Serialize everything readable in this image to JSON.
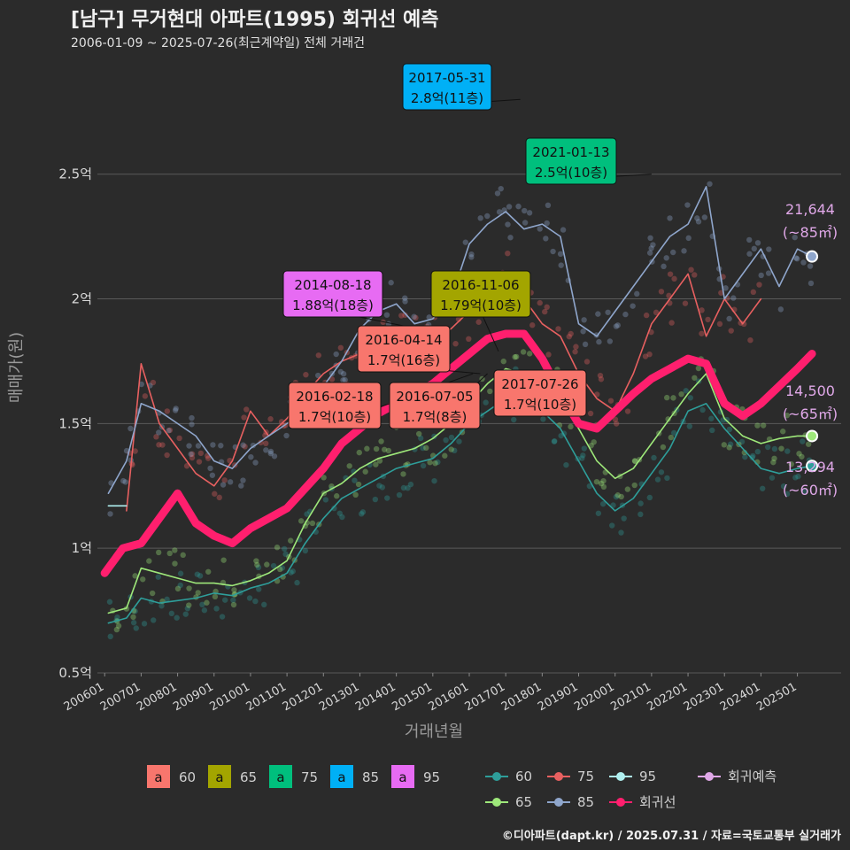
{
  "title": "[남구] 무거현대 아파트(1995) 회귀선 예측",
  "subtitle": "2006-01-09 ~ 2025-07-26(최근계약일) 전체 거래건",
  "caption": "©디아파트(dapt.kr) / 2025.07.31 / 자료=국토교통부 실거래가",
  "colors": {
    "background": "#2b2b2b",
    "grid": "#5a5a5a",
    "s60": "#F8766D",
    "s65": "#A3A500",
    "s75": "#00BF7D",
    "s85": "#00B0F6",
    "s95": "#E76BF3",
    "line60": "#2E9E9A",
    "line65": "#9EE87A",
    "line75": "#E86060",
    "line85": "#8FA6CC",
    "line95": "#AFF0F0",
    "regression": "#FF1F6E",
    "predict": "#E0A8E8"
  },
  "chart_data": {
    "type": "line",
    "xlabel": "거래년월",
    "ylabel": "매매가(원)",
    "ylim": [
      0.5,
      2.95
    ],
    "x_ticks": [
      "200601",
      "200701",
      "200801",
      "200901",
      "201001",
      "201101",
      "201201",
      "201301",
      "201401",
      "201501",
      "201601",
      "201701",
      "201801",
      "201901",
      "202001",
      "202101",
      "202201",
      "202301",
      "202401",
      "202501"
    ],
    "y_ticks": [
      {
        "value": 0.5,
        "label": "0.5억"
      },
      {
        "value": 1.0,
        "label": "1억"
      },
      {
        "value": 1.5,
        "label": "1.5억"
      },
      {
        "value": 2.0,
        "label": "2억"
      },
      {
        "value": 2.5,
        "label": "2.5억"
      }
    ],
    "series": [
      {
        "name": "60",
        "key": "line60",
        "points": [
          [
            2006.1,
            0.7
          ],
          [
            2006.6,
            0.72
          ],
          [
            2007.0,
            0.8
          ],
          [
            2007.5,
            0.78
          ],
          [
            2008.0,
            0.79
          ],
          [
            2008.5,
            0.8
          ],
          [
            2009.0,
            0.82
          ],
          [
            2009.5,
            0.81
          ],
          [
            2010.0,
            0.84
          ],
          [
            2010.5,
            0.86
          ],
          [
            2011.0,
            0.9
          ],
          [
            2011.5,
            1.02
          ],
          [
            2012.0,
            1.12
          ],
          [
            2012.5,
            1.2
          ],
          [
            2013.0,
            1.24
          ],
          [
            2013.5,
            1.28
          ],
          [
            2014.0,
            1.32
          ],
          [
            2014.5,
            1.34
          ],
          [
            2015.0,
            1.36
          ],
          [
            2015.5,
            1.42
          ],
          [
            2016.0,
            1.5
          ],
          [
            2016.5,
            1.55
          ],
          [
            2017.0,
            1.6
          ],
          [
            2017.5,
            1.62
          ],
          [
            2018.0,
            1.55
          ],
          [
            2018.5,
            1.48
          ],
          [
            2019.0,
            1.35
          ],
          [
            2019.5,
            1.22
          ],
          [
            2020.0,
            1.15
          ],
          [
            2020.5,
            1.2
          ],
          [
            2021.0,
            1.3
          ],
          [
            2021.5,
            1.4
          ],
          [
            2022.0,
            1.55
          ],
          [
            2022.5,
            1.58
          ],
          [
            2023.0,
            1.48
          ],
          [
            2023.5,
            1.4
          ],
          [
            2024.0,
            1.32
          ],
          [
            2024.5,
            1.3
          ],
          [
            2025.0,
            1.32
          ],
          [
            2025.4,
            1.33
          ]
        ]
      },
      {
        "name": "65",
        "key": "line65",
        "points": [
          [
            2006.1,
            0.74
          ],
          [
            2006.6,
            0.76
          ],
          [
            2007.0,
            0.92
          ],
          [
            2007.5,
            0.9
          ],
          [
            2008.0,
            0.88
          ],
          [
            2008.5,
            0.86
          ],
          [
            2009.0,
            0.86
          ],
          [
            2009.5,
            0.85
          ],
          [
            2010.0,
            0.87
          ],
          [
            2010.5,
            0.9
          ],
          [
            2011.0,
            0.95
          ],
          [
            2011.5,
            1.1
          ],
          [
            2012.0,
            1.22
          ],
          [
            2012.5,
            1.26
          ],
          [
            2013.0,
            1.32
          ],
          [
            2013.5,
            1.36
          ],
          [
            2014.0,
            1.38
          ],
          [
            2014.5,
            1.4
          ],
          [
            2015.0,
            1.44
          ],
          [
            2015.5,
            1.5
          ],
          [
            2016.0,
            1.58
          ],
          [
            2016.5,
            1.66
          ],
          [
            2017.0,
            1.72
          ],
          [
            2017.5,
            1.7
          ],
          [
            2018.0,
            1.66
          ],
          [
            2018.5,
            1.6
          ],
          [
            2019.0,
            1.48
          ],
          [
            2019.5,
            1.35
          ],
          [
            2020.0,
            1.28
          ],
          [
            2020.5,
            1.32
          ],
          [
            2021.0,
            1.42
          ],
          [
            2021.5,
            1.52
          ],
          [
            2022.0,
            1.62
          ],
          [
            2022.5,
            1.7
          ],
          [
            2023.0,
            1.52
          ],
          [
            2023.5,
            1.45
          ],
          [
            2024.0,
            1.42
          ],
          [
            2024.5,
            1.44
          ],
          [
            2025.0,
            1.45
          ],
          [
            2025.4,
            1.45
          ]
        ]
      },
      {
        "name": "75",
        "key": "line75",
        "points": [
          [
            2006.6,
            1.15
          ],
          [
            2007.0,
            1.74
          ],
          [
            2007.5,
            1.5
          ],
          [
            2008.0,
            1.4
          ],
          [
            2008.5,
            1.3
          ],
          [
            2009.0,
            1.25
          ],
          [
            2009.5,
            1.35
          ],
          [
            2010.0,
            1.55
          ],
          [
            2010.5,
            1.45
          ],
          [
            2011.0,
            1.52
          ],
          [
            2011.5,
            1.62
          ],
          [
            2012.0,
            1.7
          ],
          [
            2012.5,
            1.75
          ],
          [
            2013.0,
            1.78
          ],
          [
            2013.5,
            1.8
          ],
          [
            2014.0,
            1.82
          ],
          [
            2014.5,
            1.84
          ],
          [
            2015.0,
            1.84
          ],
          [
            2015.5,
            1.88
          ],
          [
            2016.0,
            1.95
          ],
          [
            2016.5,
            2.0
          ],
          [
            2017.0,
            2.1
          ],
          [
            2017.5,
            2.0
          ],
          [
            2018.0,
            1.9
          ],
          [
            2018.5,
            1.85
          ],
          [
            2019.0,
            1.7
          ],
          [
            2019.5,
            1.6
          ],
          [
            2020.0,
            1.55
          ],
          [
            2020.5,
            1.7
          ],
          [
            2021.0,
            1.9
          ],
          [
            2021.5,
            2.0
          ],
          [
            2022.0,
            2.1
          ],
          [
            2022.5,
            1.85
          ],
          [
            2023.0,
            2.0
          ],
          [
            2023.5,
            1.9
          ],
          [
            2024.0,
            2.0
          ]
        ]
      },
      {
        "name": "85",
        "key": "line85",
        "points": [
          [
            2006.1,
            1.22
          ],
          [
            2006.6,
            1.35
          ],
          [
            2007.0,
            1.58
          ],
          [
            2007.5,
            1.55
          ],
          [
            2008.0,
            1.5
          ],
          [
            2008.5,
            1.45
          ],
          [
            2009.0,
            1.35
          ],
          [
            2009.5,
            1.32
          ],
          [
            2010.0,
            1.4
          ],
          [
            2010.5,
            1.45
          ],
          [
            2011.0,
            1.5
          ],
          [
            2011.5,
            1.55
          ],
          [
            2012.0,
            1.65
          ],
          [
            2012.5,
            1.75
          ],
          [
            2013.0,
            1.88
          ],
          [
            2013.5,
            1.95
          ],
          [
            2014.0,
            1.98
          ],
          [
            2014.5,
            1.9
          ],
          [
            2015.0,
            1.92
          ],
          [
            2015.5,
            2.0
          ],
          [
            2016.0,
            2.22
          ],
          [
            2016.5,
            2.3
          ],
          [
            2017.0,
            2.35
          ],
          [
            2017.5,
            2.28
          ],
          [
            2018.0,
            2.3
          ],
          [
            2018.5,
            2.25
          ],
          [
            2019.0,
            1.9
          ],
          [
            2019.5,
            1.85
          ],
          [
            2020.0,
            1.95
          ],
          [
            2020.5,
            2.05
          ],
          [
            2021.0,
            2.15
          ],
          [
            2021.5,
            2.25
          ],
          [
            2022.0,
            2.3
          ],
          [
            2022.5,
            2.45
          ],
          [
            2023.0,
            2.0
          ],
          [
            2023.5,
            2.1
          ],
          [
            2024.0,
            2.2
          ],
          [
            2024.5,
            2.05
          ],
          [
            2025.0,
            2.2
          ],
          [
            2025.4,
            2.17
          ]
        ]
      },
      {
        "name": "95",
        "key": "line95",
        "points": [
          [
            2006.1,
            1.17
          ],
          [
            2006.6,
            1.17
          ]
        ]
      },
      {
        "name": "회귀선",
        "key": "regression",
        "points": [
          [
            2006.0,
            0.9
          ],
          [
            2006.5,
            1.0
          ],
          [
            2007.0,
            1.02
          ],
          [
            2007.5,
            1.12
          ],
          [
            2008.0,
            1.22
          ],
          [
            2008.5,
            1.1
          ],
          [
            2009.0,
            1.05
          ],
          [
            2009.5,
            1.02
          ],
          [
            2010.0,
            1.08
          ],
          [
            2010.5,
            1.12
          ],
          [
            2011.0,
            1.16
          ],
          [
            2011.5,
            1.24
          ],
          [
            2012.0,
            1.32
          ],
          [
            2012.5,
            1.42
          ],
          [
            2013.0,
            1.48
          ],
          [
            2013.5,
            1.54
          ],
          [
            2014.0,
            1.58
          ],
          [
            2014.5,
            1.62
          ],
          [
            2015.0,
            1.66
          ],
          [
            2015.5,
            1.72
          ],
          [
            2016.0,
            1.78
          ],
          [
            2016.5,
            1.84
          ],
          [
            2017.0,
            1.86
          ],
          [
            2017.5,
            1.86
          ],
          [
            2018.0,
            1.76
          ],
          [
            2018.5,
            1.62
          ],
          [
            2019.0,
            1.5
          ],
          [
            2019.5,
            1.48
          ],
          [
            2020.0,
            1.55
          ],
          [
            2020.5,
            1.62
          ],
          [
            2021.0,
            1.68
          ],
          [
            2021.5,
            1.72
          ],
          [
            2022.0,
            1.76
          ],
          [
            2022.5,
            1.74
          ],
          [
            2023.0,
            1.58
          ],
          [
            2023.5,
            1.53
          ],
          [
            2024.0,
            1.58
          ],
          [
            2024.5,
            1.65
          ],
          [
            2025.0,
            1.72
          ],
          [
            2025.4,
            1.78
          ]
        ]
      }
    ],
    "annotations": [
      {
        "date": "2017-05-31",
        "label": "2.8억(11층)",
        "size": "85",
        "anchor": [
          2017.4,
          2.8
        ]
      },
      {
        "date": "2021-01-13",
        "label": "2.5억(10층)",
        "size": "75",
        "anchor": [
          2021.0,
          2.5
        ]
      },
      {
        "date": "2014-08-18",
        "label": "1.88억(18층)",
        "size": "95",
        "anchor": [
          2014.6,
          1.88
        ]
      },
      {
        "date": "2016-11-06",
        "label": "1.79억(10층)",
        "size": "65",
        "anchor": [
          2016.8,
          1.79
        ]
      },
      {
        "date": "2016-04-14",
        "label": "1.7억(16층)",
        "size": "60",
        "anchor": [
          2016.3,
          1.7
        ]
      },
      {
        "date": "2016-02-18",
        "label": "1.7억(10층)",
        "size": "60",
        "anchor": [
          2016.1,
          1.7
        ]
      },
      {
        "date": "2016-07-05",
        "label": "1.7억(8층)",
        "size": "60",
        "anchor": [
          2016.5,
          1.7
        ]
      },
      {
        "date": "2017-07-26",
        "label": "1.7억(10층)",
        "size": "60",
        "anchor": [
          2017.6,
          1.7
        ]
      }
    ],
    "end_labels": [
      {
        "value": "21,644",
        "unit": "(~85㎡)",
        "y": 2.17
      },
      {
        "value": "14,500",
        "unit": "(~65㎡)",
        "y": 1.45
      },
      {
        "value": "13,294",
        "unit": "(~60㎡)",
        "y": 1.33
      }
    ],
    "legend": {
      "fill_items": [
        {
          "glyph": "a",
          "label": "60",
          "key": "s60"
        },
        {
          "glyph": "a",
          "label": "65",
          "key": "s65"
        },
        {
          "glyph": "a",
          "label": "75",
          "key": "s75"
        },
        {
          "glyph": "a",
          "label": "85",
          "key": "s85"
        },
        {
          "glyph": "a",
          "label": "95",
          "key": "s95"
        }
      ],
      "line_items": [
        {
          "label": "60",
          "key": "line60"
        },
        {
          "label": "75",
          "key": "line75"
        },
        {
          "label": "95",
          "key": "line95"
        },
        {
          "label": "회귀예측",
          "key": "predict"
        },
        {
          "label": "65",
          "key": "line65"
        },
        {
          "label": "85",
          "key": "line85"
        },
        {
          "label": "회귀선",
          "key": "regression"
        }
      ]
    }
  }
}
